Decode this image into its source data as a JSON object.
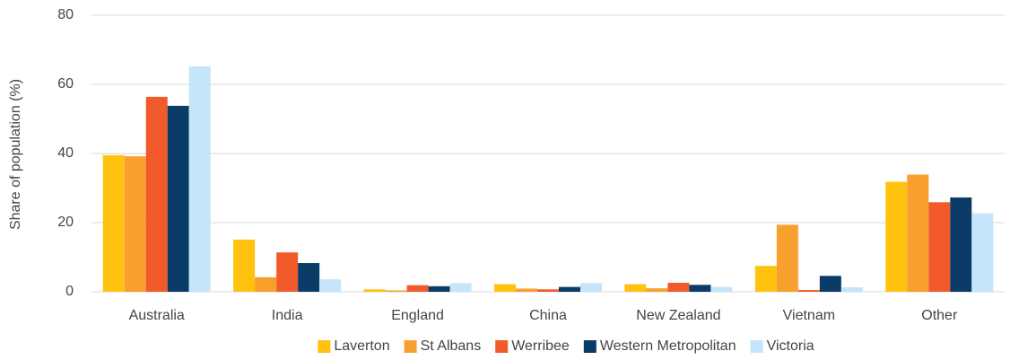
{
  "chart_data": {
    "type": "bar",
    "y_label": "Share of population (%)",
    "categories": [
      "Australia",
      "India",
      "England",
      "China",
      "New Zealand",
      "Vietnam",
      "Other"
    ],
    "series": [
      {
        "name": "Laverton",
        "color": "#ffc20e",
        "values": [
          39.5,
          15.1,
          0.7,
          2.2,
          2.2,
          7.5,
          31.8
        ]
      },
      {
        "name": "St Albans",
        "color": "#f7a02d",
        "values": [
          39.2,
          4.2,
          0.4,
          0.9,
          1.0,
          19.4,
          33.9
        ]
      },
      {
        "name": "Werribee",
        "color": "#f15a2b",
        "values": [
          56.4,
          11.4,
          1.9,
          0.7,
          2.6,
          0.5,
          25.9
        ]
      },
      {
        "name": "Western Metropolitan",
        "color": "#0b3c68",
        "values": [
          53.8,
          8.3,
          1.6,
          1.4,
          2.0,
          4.6,
          27.3
        ]
      },
      {
        "name": "Victoria",
        "color": "#c5e5fa",
        "values": [
          65.2,
          3.6,
          2.5,
          2.5,
          1.4,
          1.3,
          22.7
        ]
      }
    ],
    "ylim": [
      0,
      80
    ],
    "yticks": [
      0,
      20,
      40,
      60,
      80
    ],
    "grid": true,
    "legend": "bottom"
  }
}
